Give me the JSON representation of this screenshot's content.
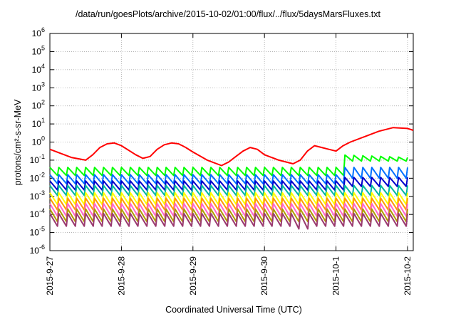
{
  "chart_data": {
    "type": "line",
    "title": "/data/run/goesPlots/archive/2015-10-02/01:00/flux/../flux/5daysMarsFluxes.txt",
    "xlabel": "Coordinated Universal Time (UTC)",
    "ylabel": "protons/cm²-s-sr-MeV",
    "yscale": "log",
    "ylim": [
      1e-06,
      1000000.0
    ],
    "xlim": [
      "2015-09-27",
      "2015-10-02 02:00"
    ],
    "grid": true,
    "legend": "none",
    "x_ticks": [
      "2015-9-27",
      "2015-9-28",
      "2015-9-29",
      "2015-9-30",
      "2015-10-1",
      "2015-10-2"
    ],
    "y_ticks": [
      {
        "base": "10",
        "exp": "-6"
      },
      {
        "base": "10",
        "exp": "-5"
      },
      {
        "base": "10",
        "exp": "-4"
      },
      {
        "base": "10",
        "exp": "-3"
      },
      {
        "base": "10",
        "exp": "-2"
      },
      {
        "base": "10",
        "exp": "-1"
      },
      {
        "base": "10",
        "exp": "0"
      },
      {
        "base": "10",
        "exp": "1"
      },
      {
        "base": "10",
        "exp": "2"
      },
      {
        "base": "10",
        "exp": "3"
      },
      {
        "base": "10",
        "exp": "4"
      },
      {
        "base": "10",
        "exp": "5"
      },
      {
        "base": "10",
        "exp": "6"
      }
    ],
    "series": [
      {
        "color": "#ff0000",
        "x_days": [
          0,
          0.3,
          0.5,
          0.6,
          0.7,
          0.8,
          0.9,
          1.0,
          1.2,
          1.3,
          1.4,
          1.5,
          1.6,
          1.7,
          1.8,
          1.9,
          2.0,
          2.2,
          2.4,
          2.5,
          2.6,
          2.7,
          2.8,
          2.9,
          3.0,
          3.2,
          3.4,
          3.5,
          3.6,
          3.7,
          3.8,
          3.9,
          4.0,
          4.1,
          4.2,
          4.4,
          4.6,
          4.8,
          5.0,
          5.08
        ],
        "log10_y": [
          -0.4,
          -0.85,
          -1.0,
          -0.7,
          -0.3,
          -0.1,
          -0.05,
          -0.2,
          -0.7,
          -0.9,
          -0.8,
          -0.4,
          -0.15,
          -0.05,
          -0.1,
          -0.3,
          -0.55,
          -1.0,
          -1.3,
          -1.1,
          -0.8,
          -0.5,
          -0.3,
          -0.4,
          -0.7,
          -1.0,
          -1.2,
          -1.0,
          -0.5,
          -0.2,
          -0.3,
          -0.4,
          -0.5,
          -0.2,
          0.0,
          0.3,
          0.6,
          0.8,
          0.75,
          0.65
        ]
      },
      {
        "color": "#00ff00",
        "min": -1.85,
        "max": -1.4,
        "shift_at": 4.02,
        "after_min": -1.05,
        "after_max": -0.7,
        "after_end": -1.1
      },
      {
        "color": "#0070ff",
        "min": -2.3,
        "max": -1.8,
        "shift_at": 4.02,
        "after_min": -2.0,
        "after_max": -1.4
      },
      {
        "color": "#0000cc",
        "min": -2.65,
        "max": -2.15,
        "shift_at": 4.02,
        "after_min": -2.45,
        "after_max": -1.95
      },
      {
        "color": "#00b8a0",
        "min": -2.95,
        "max": -2.4
      },
      {
        "color": "#ffff00",
        "min": -3.45,
        "max": -2.8
      },
      {
        "color": "#ff9900",
        "min": -3.75,
        "max": -3.1
      },
      {
        "color": "#ff66cc",
        "min": -4.1,
        "max": -3.4
      },
      {
        "color": "#b09a00",
        "min": -4.4,
        "max": -3.7
      },
      {
        "color": "#9a3a70",
        "min": -4.65,
        "max": -3.95,
        "dip_at": 3.6,
        "dip_value": -4.8
      }
    ]
  }
}
